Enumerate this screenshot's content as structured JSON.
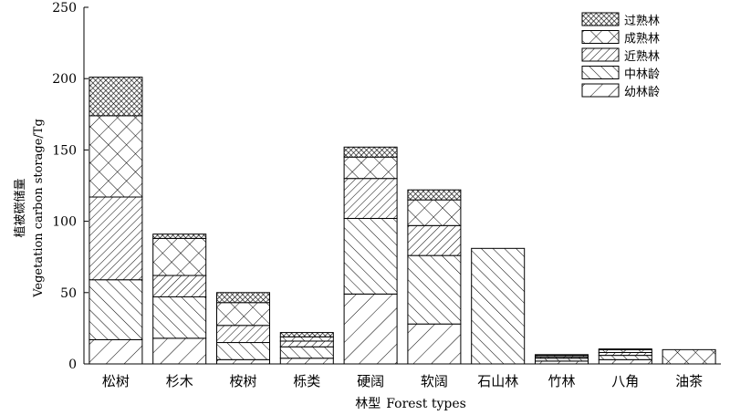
{
  "chart_data": {
    "type": "bar",
    "stacked": true,
    "title": "",
    "xlabel_cn": "林型",
    "xlabel_en": "Forest types",
    "ylabel_cn": "植被碳储量",
    "ylabel_en": "Vegetation carbon storage/Tg",
    "ylim": [
      0,
      250
    ],
    "yticks": [
      0,
      50,
      100,
      150,
      200,
      250
    ],
    "categories": [
      "松树",
      "杉木",
      "桉树",
      "栎类",
      "硬阔",
      "软阔",
      "石山林",
      "竹林",
      "八角",
      "油茶"
    ],
    "series": [
      {
        "name": "幼林龄",
        "pattern": "pat-young",
        "values": [
          17,
          18,
          3,
          4,
          49,
          28,
          0,
          2,
          3,
          0
        ]
      },
      {
        "name": "中林龄",
        "pattern": "pat-middle",
        "values": [
          42,
          29,
          12,
          8,
          53,
          48,
          81,
          2,
          3,
          0
        ]
      },
      {
        "name": "近熟林",
        "pattern": "pat-near",
        "values": [
          58,
          15,
          12,
          4,
          28,
          21,
          0,
          1,
          2,
          0
        ]
      },
      {
        "name": "成熟林",
        "pattern": "pat-mature",
        "values": [
          57,
          26,
          16,
          3,
          15,
          18,
          0,
          1,
          2,
          10
        ]
      },
      {
        "name": "过熟林",
        "pattern": "pat-over",
        "values": [
          27,
          3,
          7,
          3,
          7,
          7,
          0,
          0.5,
          0.5,
          0
        ]
      }
    ],
    "legend_order": [
      "过熟林",
      "成熟林",
      "近熟林",
      "中林龄",
      "幼林龄"
    ],
    "legend_position": "top-right",
    "grid": false
  }
}
